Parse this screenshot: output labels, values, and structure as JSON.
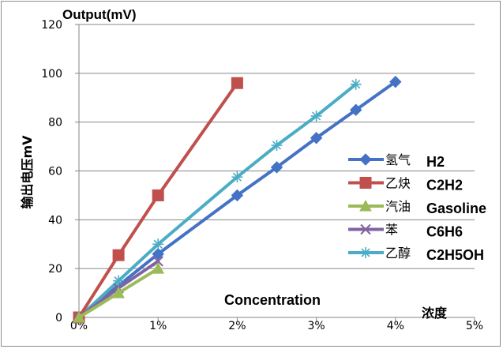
{
  "chart_data": {
    "type": "line",
    "title": "",
    "ylabel_top": "Output(mV)",
    "ylabel_side": "输出电压mV",
    "xlabel_en": "Concentration",
    "xlabel_cn": "浓度",
    "xlim": [
      0,
      5
    ],
    "ylim": [
      0,
      120
    ],
    "x_ticks": [
      "0%",
      "1%",
      "2%",
      "3%",
      "4%",
      "5%"
    ],
    "y_ticks": [
      "0",
      "20",
      "40",
      "60",
      "80",
      "100",
      "120"
    ],
    "grid": "horizontal",
    "legend_position": "right",
    "series": [
      {
        "name": "氢气",
        "alias": "H2",
        "color": "#4472C4",
        "marker": "diamond",
        "x": [
          0,
          1,
          2,
          2.5,
          3,
          3.5,
          4
        ],
        "y": [
          0,
          26,
          50,
          61.5,
          73.5,
          85,
          96.5
        ]
      },
      {
        "name": "乙炔",
        "alias": "C2H2",
        "color": "#C0504D",
        "marker": "square",
        "x": [
          0,
          0.5,
          1,
          2
        ],
        "y": [
          0,
          25.5,
          50,
          96
        ]
      },
      {
        "name": "汽油",
        "alias": "Gasoline",
        "color": "#9BBB59",
        "marker": "triangle",
        "x": [
          0,
          0.5,
          1
        ],
        "y": [
          0,
          10,
          20
        ]
      },
      {
        "name": "苯",
        "alias": "C6H6",
        "color": "#8064A2",
        "marker": "x",
        "x": [
          0,
          0.5,
          1
        ],
        "y": [
          0,
          12,
          23
        ]
      },
      {
        "name": "乙醇",
        "alias": "C2H5OH",
        "color": "#4BACC6",
        "marker": "star",
        "x": [
          0,
          0.5,
          1,
          2,
          2.5,
          3,
          3.5
        ],
        "y": [
          0,
          15,
          30,
          57.5,
          70.5,
          82.5,
          95.5
        ]
      }
    ]
  }
}
